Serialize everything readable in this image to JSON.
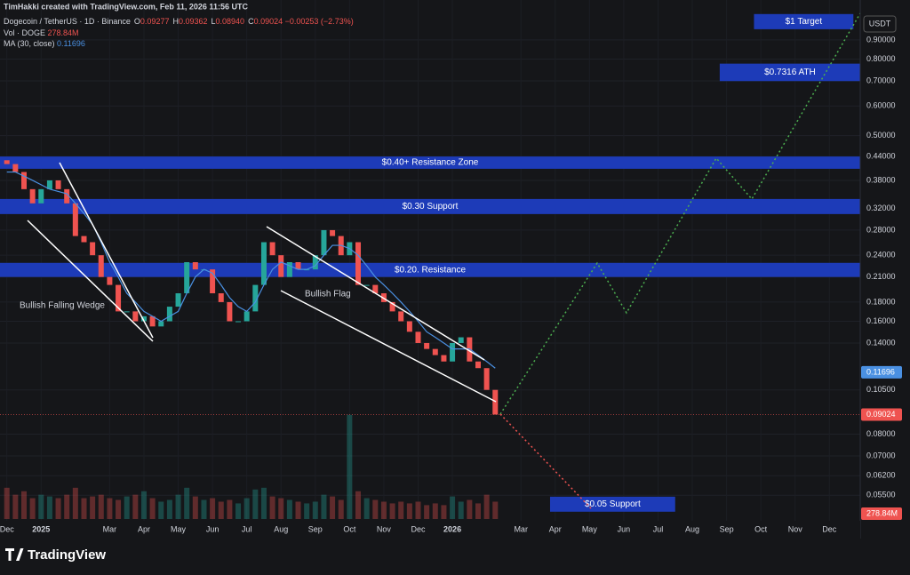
{
  "header": {
    "credit": "TimHakki created with TradingView.com, Feb 11, 2026 11:56 UTC",
    "symbol": "Dogecoin / TetherUS · 1D · Binance",
    "ohlc": [
      {
        "key": "O",
        "value": "0.09277"
      },
      {
        "key": "H",
        "value": "0.09362"
      },
      {
        "key": "L",
        "value": "0.08940"
      },
      {
        "key": "C",
        "value": "0.09024"
      }
    ],
    "change": "−0.00253 (−2.73%)",
    "vol_name": "Vol · DOGE",
    "vol_value": "278.84M",
    "ma_name": "MA (30, close)",
    "ma_value": "0.11696"
  },
  "brand": "TradingView",
  "chart_data": {
    "type": "candlestick",
    "log_scale": true,
    "currency": "USDT",
    "xlim": [
      -0.2,
      24.9
    ],
    "ylim": [
      0.045,
      1.15
    ],
    "vlim": [
      0,
      3200
    ],
    "xticks": [
      {
        "value": 0,
        "label": "Dec"
      },
      {
        "value": 1,
        "label": "2025"
      },
      {
        "value": 3,
        "label": "Mar"
      },
      {
        "value": 4,
        "label": "Apr"
      },
      {
        "value": 5,
        "label": "May"
      },
      {
        "value": 6,
        "label": "Jun"
      },
      {
        "value": 7,
        "label": "Jul"
      },
      {
        "value": 8,
        "label": "Aug"
      },
      {
        "value": 9,
        "label": "Sep"
      },
      {
        "value": 10,
        "label": "Oct"
      },
      {
        "value": 11,
        "label": "Nov"
      },
      {
        "value": 12,
        "label": "Dec"
      },
      {
        "value": 13,
        "label": "2026"
      },
      {
        "value": 15,
        "label": "Mar"
      },
      {
        "value": 16,
        "label": "Apr"
      },
      {
        "value": 17,
        "label": "May"
      },
      {
        "value": 18,
        "label": "Jun"
      },
      {
        "value": 19,
        "label": "Jul"
      },
      {
        "value": 20,
        "label": "Aug"
      },
      {
        "value": 21,
        "label": "Sep"
      },
      {
        "value": 22,
        "label": "Oct"
      },
      {
        "value": 23,
        "label": "Nov"
      },
      {
        "value": 24,
        "label": "Dec"
      }
    ],
    "yticks": [
      {
        "value": 0.9,
        "label": "0.90000"
      },
      {
        "value": 0.8,
        "label": "0.80000"
      },
      {
        "value": 0.7,
        "label": "0.70000"
      },
      {
        "value": 0.6,
        "label": "0.60000"
      },
      {
        "value": 0.5,
        "label": "0.50000"
      },
      {
        "value": 0.44,
        "label": "0.44000"
      },
      {
        "value": 0.38,
        "label": "0.38000"
      },
      {
        "value": 0.32,
        "label": "0.32000"
      },
      {
        "value": 0.28,
        "label": "0.28000"
      },
      {
        "value": 0.24,
        "label": "0.24000"
      },
      {
        "value": 0.21,
        "label": "0.21000"
      },
      {
        "value": 0.18,
        "label": "0.18000"
      },
      {
        "value": 0.16,
        "label": "0.16000"
      },
      {
        "value": 0.14,
        "label": "0.14000"
      },
      {
        "value": 0.105,
        "label": "0.10500"
      },
      {
        "value": 0.08,
        "label": "0.08000"
      },
      {
        "value": 0.07,
        "label": "0.07000"
      },
      {
        "value": 0.062,
        "label": "0.06200"
      },
      {
        "value": 0.055,
        "label": "0.05500"
      }
    ],
    "x": [
      0,
      0.25,
      0.5,
      0.75,
      1,
      1.25,
      1.5,
      1.75,
      2,
      2.25,
      2.5,
      2.75,
      3,
      3.25,
      3.5,
      3.75,
      4,
      4.25,
      4.5,
      4.75,
      5,
      5.25,
      5.5,
      5.75,
      6,
      6.25,
      6.5,
      6.75,
      7,
      7.25,
      7.5,
      7.75,
      8,
      8.25,
      8.5,
      8.75,
      9,
      9.25,
      9.5,
      9.75,
      10,
      10.25,
      10.5,
      10.75,
      11,
      11.25,
      11.5,
      11.75,
      12,
      12.25,
      12.5,
      12.75,
      13,
      13.25,
      13.5,
      13.75,
      14,
      14.25
    ],
    "series": [
      {
        "name": "Close",
        "up_color": "#26a69a",
        "down_color": "#ef5350",
        "first_open": 0.43,
        "values": [
          0.42,
          0.4,
          0.36,
          0.33,
          0.36,
          0.38,
          0.36,
          0.33,
          0.27,
          0.26,
          0.24,
          0.21,
          0.2,
          0.17,
          0.17,
          0.16,
          0.165,
          0.155,
          0.16,
          0.175,
          0.19,
          0.23,
          0.22,
          0.22,
          0.19,
          0.18,
          0.16,
          0.16,
          0.17,
          0.2,
          0.26,
          0.24,
          0.21,
          0.23,
          0.22,
          0.22,
          0.24,
          0.28,
          0.27,
          0.24,
          0.26,
          0.2,
          0.2,
          0.19,
          0.18,
          0.17,
          0.16,
          0.15,
          0.14,
          0.135,
          0.13,
          0.125,
          0.14,
          0.145,
          0.125,
          0.12,
          0.105,
          0.09024
        ]
      },
      {
        "name": "MA",
        "color": "#4a90e2",
        "values": [
          0.4,
          0.4,
          0.39,
          0.38,
          0.37,
          0.36,
          0.355,
          0.35,
          0.33,
          0.31,
          0.29,
          0.26,
          0.23,
          0.21,
          0.19,
          0.18,
          0.17,
          0.165,
          0.16,
          0.165,
          0.17,
          0.19,
          0.21,
          0.22,
          0.215,
          0.2,
          0.185,
          0.175,
          0.17,
          0.18,
          0.2,
          0.22,
          0.23,
          0.225,
          0.22,
          0.22,
          0.225,
          0.24,
          0.255,
          0.255,
          0.25,
          0.24,
          0.225,
          0.21,
          0.2,
          0.19,
          0.18,
          0.17,
          0.16,
          0.15,
          0.145,
          0.14,
          0.135,
          0.135,
          0.135,
          0.13,
          0.125,
          0.12
        ]
      },
      {
        "name": "Volume",
        "values": [
          900,
          700,
          800,
          600,
          700,
          650,
          600,
          700,
          900,
          600,
          650,
          700,
          600,
          550,
          650,
          700,
          800,
          600,
          500,
          550,
          700,
          900,
          650,
          550,
          600,
          500,
          550,
          450,
          600,
          850,
          900,
          650,
          600,
          550,
          500,
          450,
          500,
          700,
          650,
          550,
          3000,
          800,
          600,
          550,
          500,
          450,
          500,
          450,
          500,
          400,
          450,
          400,
          650,
          500,
          550,
          450,
          700,
          500
        ]
      }
    ],
    "last_price": 0.09024,
    "ma_last": 0.11696,
    "volume_label": "278.84M",
    "annotations": [
      {
        "text": "$1 Target",
        "range": [
          0.961,
          1.055
        ],
        "x": [
          21.8,
          24.7
        ]
      },
      {
        "text": "$0.7316 ATH",
        "range": [
          0.699,
          0.778
        ],
        "x": [
          20.8,
          24.9
        ]
      },
      {
        "text": "$0.40+ Resistance Zone",
        "range": [
          0.408,
          0.44
        ],
        "x": [
          -0.2,
          24.9
        ]
      },
      {
        "text": "$0.30 Support",
        "range": [
          0.309,
          0.339
        ],
        "x": [
          -0.2,
          24.9
        ]
      },
      {
        "text": "$0.20. Resistance",
        "range": [
          0.21,
          0.229
        ],
        "x": [
          -0.2,
          24.9
        ]
      },
      {
        "text": "$0.05 Support",
        "range": [
          0.0497,
          0.0545
        ],
        "x": [
          15.85,
          19.5
        ]
      }
    ],
    "labels": [
      "Bullish Falling Wedge",
      "Bullish Flag"
    ]
  }
}
